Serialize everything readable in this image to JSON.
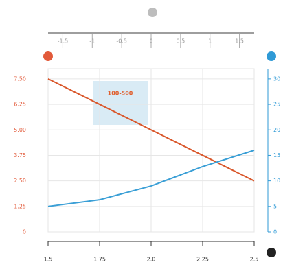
{
  "chart_data": {
    "type": "line",
    "annotation": "100-500",
    "x": [
      1.5,
      1.75,
      2.0,
      2.25,
      2.5
    ],
    "xlim": [
      1.5,
      2.5
    ],
    "xticks": [
      {
        "value": 1.5,
        "label": "1.5"
      },
      {
        "value": 1.75,
        "label": "1.75"
      },
      {
        "value": 2.0,
        "label": "2.0"
      },
      {
        "value": 2.25,
        "label": "2.25"
      },
      {
        "value": 2.5,
        "label": "2.5"
      }
    ],
    "ylim": [
      0,
      8
    ],
    "yticks": [
      0,
      1.25,
      {
        "value": 2.5,
        "label": "2.50"
      },
      3.75,
      {
        "value": 5,
        "label": "5.00"
      },
      6.25,
      {
        "value": 7.5,
        "label": "7.50"
      }
    ],
    "y2lim": [
      0,
      32
    ],
    "y2ticks": [
      0,
      5,
      10,
      15,
      20,
      25,
      30
    ],
    "toplim": [
      -1.75,
      1.75
    ],
    "topticks": [
      -1.5,
      -1,
      -0.5,
      0,
      0.5,
      1,
      1.5
    ],
    "grid": true,
    "series": [
      {
        "color": "#d9572b",
        "values": [
          7.5,
          6.25,
          5,
          3.75,
          2.5
        ]
      },
      {
        "color": "#3a9fd6",
        "axis": "y2",
        "values": [
          5,
          6.3,
          9,
          12.8,
          16
        ]
      }
    ]
  }
}
